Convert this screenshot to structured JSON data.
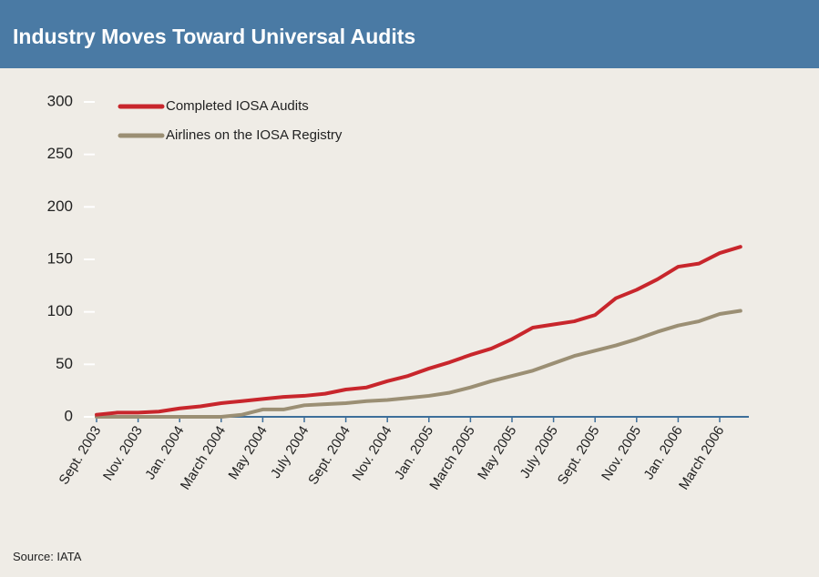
{
  "chart_data": {
    "type": "line",
    "title": "Industry Moves Toward Universal Audits",
    "source": "Source: IATA",
    "categories": [
      "Sept. 2003",
      null,
      "Nov. 2003",
      null,
      "Jan. 2004",
      null,
      "March 2004",
      null,
      "May 2004",
      null,
      "July 2004",
      null,
      "Sept. 2004",
      null,
      "Nov. 2004",
      null,
      "Jan. 2005",
      null,
      "March 2005",
      null,
      "May 2005",
      null,
      "July 2005",
      null,
      "Sept. 2005",
      null,
      "Nov. 2005",
      null,
      "Jan. 2006",
      null,
      "March 2006",
      null
    ],
    "series": [
      {
        "name": "Completed IOSA Audits",
        "color": "#c8262c",
        "values": [
          2,
          4,
          4,
          5,
          8,
          10,
          13,
          15,
          17,
          19,
          20,
          22,
          26,
          28,
          34,
          39,
          46,
          52,
          59,
          65,
          74,
          85,
          88,
          91,
          97,
          113,
          121,
          131,
          143,
          146,
          156,
          162
        ]
      },
      {
        "name": "Airlines on the IOSA Registry",
        "color": "#9b8f74",
        "values": [
          0,
          0,
          0,
          0,
          0,
          0,
          0,
          2,
          7,
          7,
          11,
          12,
          13,
          15,
          16,
          18,
          20,
          23,
          28,
          34,
          39,
          44,
          51,
          58,
          63,
          68,
          74,
          81,
          87,
          91,
          98,
          101
        ]
      }
    ],
    "ylim": [
      0,
      300
    ],
    "yticks": [
      0,
      50,
      100,
      150,
      200,
      250,
      300
    ],
    "legend": "top-left",
    "axis_color": "#3e6f9a"
  }
}
